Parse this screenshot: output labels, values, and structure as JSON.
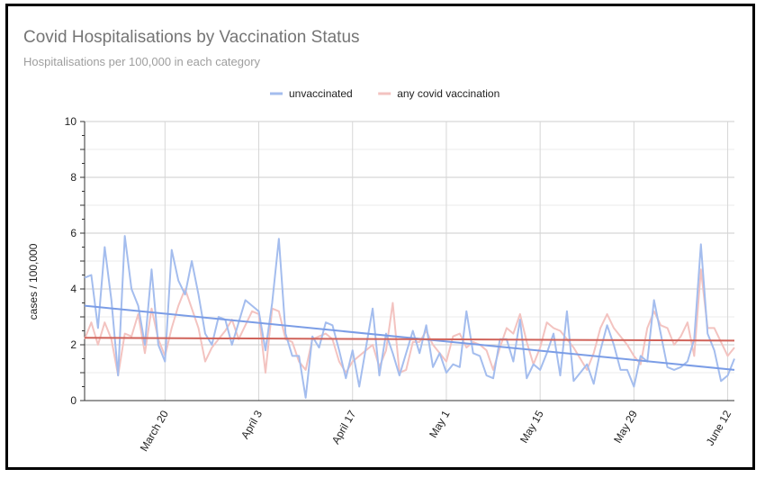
{
  "chart_data": {
    "type": "line",
    "title": "Covid Hospitalisations by Vaccination Status",
    "subtitle": "Hospitalisations per 100,000 in each category",
    "xlabel": "",
    "ylabel": "cases / 100,000",
    "ylim": [
      0,
      10
    ],
    "yticks": [
      "0",
      "2",
      "4",
      "6",
      "8",
      "10"
    ],
    "x_tick_labels": [
      "March 20",
      "April 3",
      "April 17",
      "May 1",
      "May 15",
      "May 29",
      "June 12"
    ],
    "x_tick_positions": [
      12,
      26,
      40,
      54,
      68,
      82,
      96
    ],
    "x_range": [
      0,
      97
    ],
    "legend": {
      "position": "top-center"
    },
    "series": [
      {
        "name": "unvaccinated",
        "color": "#a4bdee",
        "values": [
          4.4,
          4.5,
          2.6,
          5.5,
          3.6,
          0.9,
          5.9,
          4.0,
          3.4,
          2.0,
          4.7,
          2.0,
          1.4,
          5.4,
          4.3,
          3.8,
          5.0,
          3.8,
          2.4,
          2.0,
          3.0,
          2.9,
          2.0,
          2.8,
          3.6,
          3.4,
          3.2,
          1.8,
          3.5,
          5.8,
          2.4,
          1.6,
          1.6,
          0.1,
          2.3,
          1.9,
          2.8,
          2.7,
          1.8,
          0.8,
          1.8,
          0.5,
          1.9,
          3.3,
          0.9,
          2.4,
          1.7,
          0.9,
          1.7,
          2.5,
          1.7,
          2.7,
          1.2,
          1.7,
          1.0,
          1.3,
          1.2,
          3.2,
          1.7,
          1.6,
          0.9,
          0.8,
          2.2,
          2.2,
          1.4,
          2.9,
          0.8,
          1.3,
          1.1,
          1.7,
          2.4,
          0.9,
          3.2,
          0.7,
          1.0,
          1.3,
          0.6,
          1.8,
          2.7,
          2.0,
          1.1,
          1.1,
          0.5,
          1.6,
          1.4,
          3.6,
          2.4,
          1.2,
          1.1,
          1.2,
          1.4,
          2.2,
          5.6,
          2.4,
          1.8,
          0.7,
          0.9,
          1.5
        ],
        "trend": [
          3.4,
          1.1
        ]
      },
      {
        "name": "any covid vaccination",
        "color": "#f3c3c0",
        "values": [
          2.2,
          2.8,
          2.0,
          2.8,
          2.2,
          0.9,
          2.4,
          2.3,
          3.1,
          1.7,
          3.3,
          2.2,
          1.6,
          2.6,
          3.4,
          4.0,
          3.3,
          2.6,
          1.4,
          1.9,
          2.2,
          2.5,
          2.9,
          2.2,
          2.7,
          3.2,
          3.1,
          1.0,
          3.3,
          3.2,
          2.2,
          2.1,
          1.4,
          1.1,
          2.2,
          2.3,
          2.4,
          2.2,
          1.4,
          1.0,
          1.4,
          1.6,
          1.8,
          2.0,
          1.2,
          1.8,
          3.5,
          1.0,
          1.1,
          2.1,
          2.1,
          2.5,
          2.0,
          1.7,
          1.4,
          2.3,
          2.4,
          1.9,
          2.1,
          2.0,
          1.8,
          1.1,
          1.9,
          2.6,
          2.4,
          3.1,
          2.1,
          1.3,
          1.9,
          2.8,
          2.6,
          2.5,
          2.2,
          1.9,
          1.5,
          1.1,
          1.7,
          2.6,
          3.1,
          2.6,
          2.3,
          2.0,
          1.6,
          1.3,
          2.6,
          3.2,
          2.7,
          2.6,
          2.0,
          2.3,
          2.8,
          1.6,
          4.7,
          2.6,
          2.6,
          2.1,
          1.6,
          1.9
        ],
        "trend": [
          2.25,
          2.15
        ]
      }
    ],
    "trend_colors": {
      "unvaccinated": "#7b9de6",
      "any covid vaccination": "#d0635a"
    }
  }
}
